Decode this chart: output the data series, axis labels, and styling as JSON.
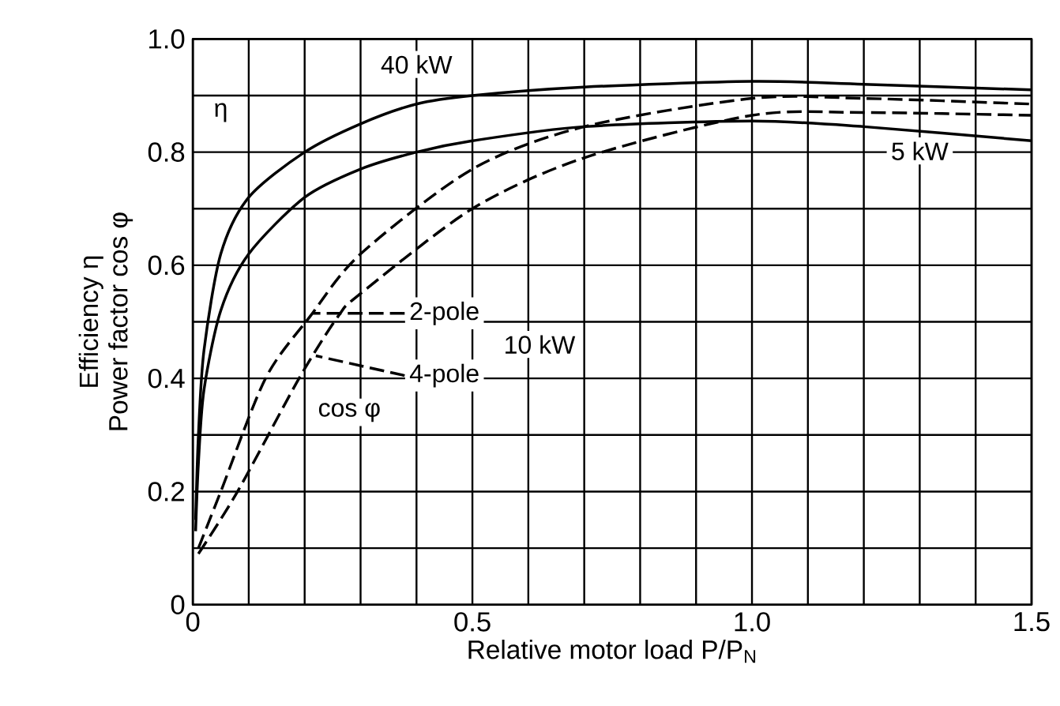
{
  "chart_data": {
    "type": "line",
    "xlabel": "Relative motor load P/P$_{N}$",
    "ylabel": "Efficiency η Power factor cos φ",
    "xlim": [
      0,
      1.5
    ],
    "ylim": [
      0,
      1
    ],
    "xticks": [
      0,
      {
        "value": 0.1,
        "label": null
      },
      {
        "value": 0.2,
        "label": null
      },
      {
        "value": 0.3,
        "label": null
      },
      {
        "value": 0.4,
        "label": null
      },
      0.5,
      {
        "value": 0.6,
        "label": null
      },
      {
        "value": 0.7,
        "label": null
      },
      {
        "value": 0.8,
        "label": null
      },
      {
        "value": 0.9,
        "label": null
      },
      {
        "value": 1,
        "label": "1.0"
      },
      {
        "value": 1.1,
        "label": null
      },
      {
        "value": 1.2,
        "label": null
      },
      {
        "value": 1.3,
        "label": null
      },
      {
        "value": 1.4,
        "label": null
      },
      1.5
    ],
    "yticks": [
      0,
      {
        "value": 0.1,
        "label": null
      },
      0.2,
      {
        "value": 0.3,
        "label": null
      },
      0.4,
      {
        "value": 0.5,
        "label": null
      },
      0.6,
      {
        "value": 0.7,
        "label": null
      },
      0.8,
      {
        "value": 0.9,
        "label": null
      },
      {
        "value": 1,
        "label": "1.0"
      }
    ],
    "grid": true,
    "marker": "none",
    "legend": "left",
    "series": [
      {
        "name": "40 kW",
        "color": "#000000",
        "line_style": "solid",
        "x": [
          0.005,
          0.01,
          0.02,
          0.05,
          0.1,
          0.2,
          0.3,
          0.4,
          0.5,
          0.7,
          1.0,
          1.2,
          1.5
        ],
        "values": [
          0.15,
          0.3,
          0.45,
          0.62,
          0.72,
          0.8,
          0.85,
          0.885,
          0.9,
          0.915,
          0.925,
          0.92,
          0.91
        ]
      },
      {
        "name": "5 kW",
        "color": "#000000",
        "line_style": "solid",
        "x": [
          0.005,
          0.01,
          0.02,
          0.05,
          0.1,
          0.2,
          0.3,
          0.4,
          0.5,
          0.7,
          1.0,
          1.2,
          1.5
        ],
        "values": [
          0.13,
          0.25,
          0.38,
          0.52,
          0.62,
          0.72,
          0.77,
          0.8,
          0.82,
          0.845,
          0.855,
          0.845,
          0.82
        ]
      },
      {
        "name": "2-pole",
        "color": "#000000",
        "line_style": "dashed",
        "x": [
          0.01,
          0.05,
          0.13,
          0.21,
          0.3,
          0.5,
          0.7,
          1.0,
          1.2,
          1.5
        ],
        "values": [
          0.1,
          0.2,
          0.4,
          0.51,
          0.62,
          0.77,
          0.845,
          0.895,
          0.895,
          0.885
        ]
      },
      {
        "name": "4-pole",
        "color": "#000000",
        "line_style": "dashed",
        "x": [
          0.01,
          0.08,
          0.19,
          0.26,
          0.3,
          0.5,
          0.7,
          1.0,
          1.2,
          1.5
        ],
        "values": [
          0.09,
          0.2,
          0.4,
          0.51,
          0.55,
          0.7,
          0.79,
          0.865,
          0.87,
          0.865
        ]
      }
    ],
    "annotations": [
      "η",
      "10 kW",
      "cos φ"
    ]
  }
}
